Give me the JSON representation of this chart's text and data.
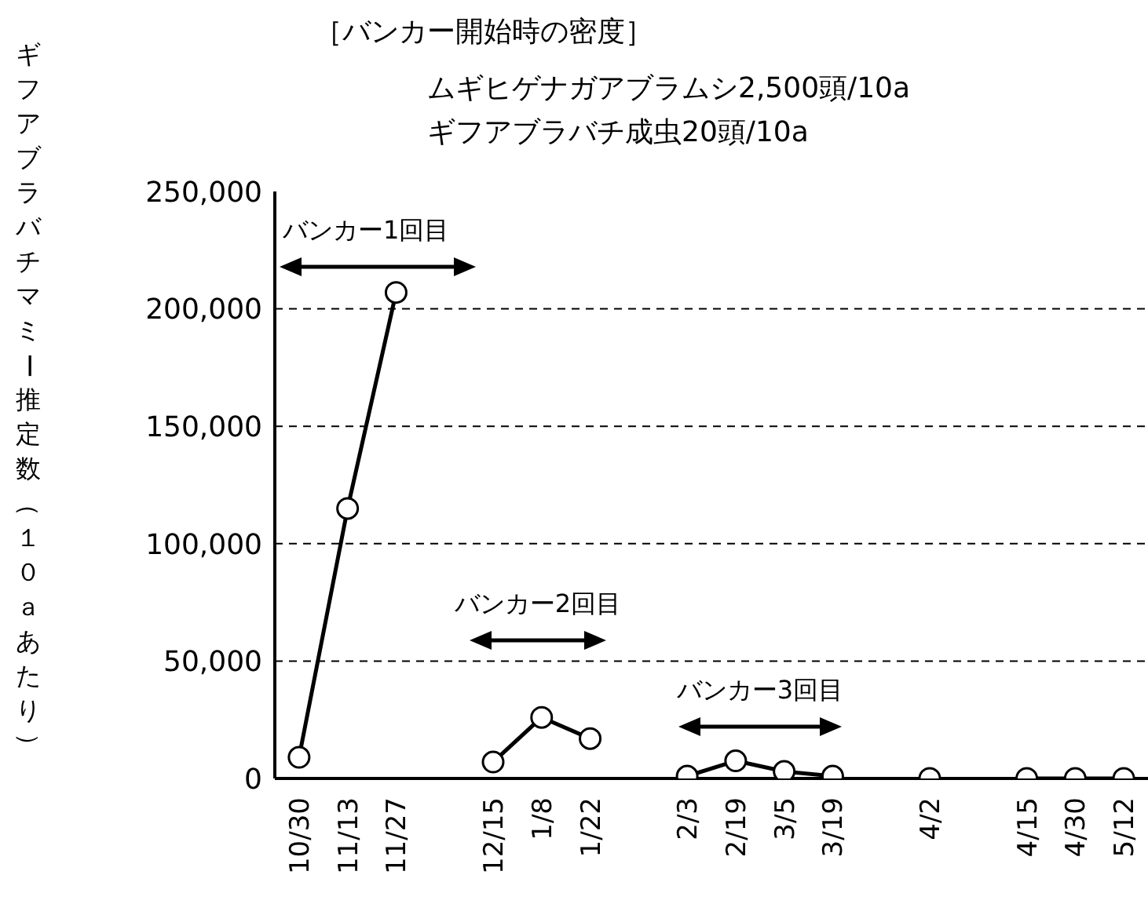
{
  "chart_data": {
    "type": "line",
    "title": "［バンカー開始時の密度］",
    "subtitle": "ムギヒゲナガアブラムシ2,500頭/10a\nギフアブラバチ成虫20頭/10a",
    "ylabel": "ギフアブラバチマミー推定数（１０ａあたり）",
    "categories": [
      "10/30",
      "11/13",
      "11/27",
      null,
      "12/15",
      "1/8",
      "1/22",
      null,
      "2/3",
      "2/19",
      "3/5",
      "3/19",
      null,
      "4/2",
      null,
      "4/15",
      "4/30",
      "5/12"
    ],
    "series": [
      {
        "color": "#000000",
        "values": [
          9000,
          115000,
          207000,
          null,
          7000,
          26000,
          17000,
          null,
          1000,
          7500,
          3000,
          1000,
          null,
          0,
          null,
          0,
          0,
          0
        ]
      }
    ],
    "ylim": [
      0,
      250000
    ],
    "yticks": [
      0,
      {
        "value": 50000,
        "label": "50,000"
      },
      {
        "value": 100000,
        "label": "100,000"
      },
      {
        "value": 150000,
        "label": "150,000"
      },
      {
        "value": 200000,
        "label": "200,000"
      },
      {
        "value": 250000,
        "label": "250,000"
      }
    ],
    "grid": "y",
    "marker": "circle",
    "line_style": "solid",
    "legend": false,
    "annotations": [
      "バンカー1回目",
      "バンカー2回目",
      "バンカー3回目"
    ]
  }
}
